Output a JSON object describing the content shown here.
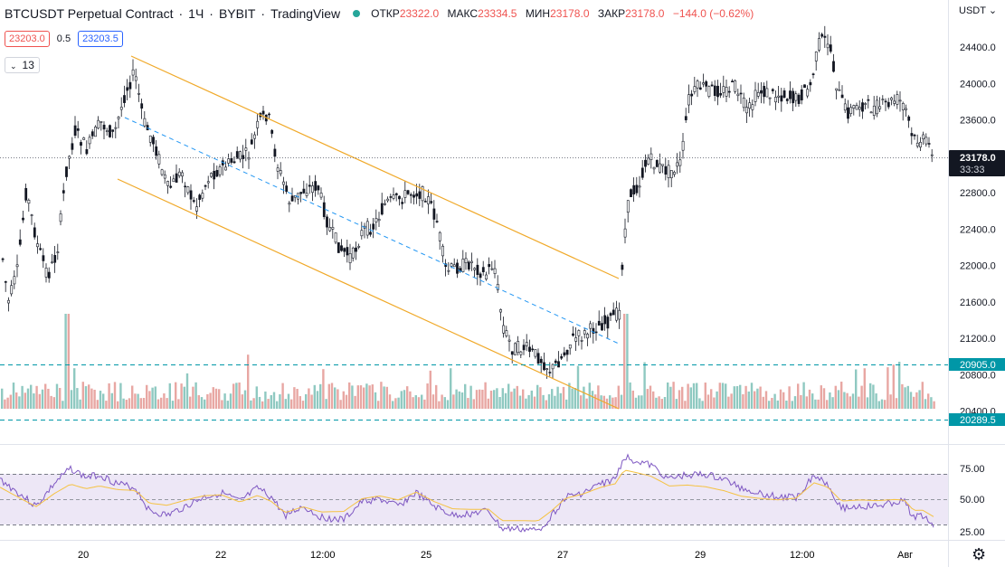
{
  "header": {
    "symbol": "BTCUSDT Perpetual Contract",
    "interval": "1Ч",
    "exchange": "BYBIT",
    "source": "TradingView",
    "open_label": "ОТКР",
    "open": "23322.0",
    "high_label": "МАКС",
    "high": "23334.5",
    "low_label": "МИН",
    "low": "23178.0",
    "close_label": "ЗАКР",
    "close": "23178.0",
    "change": "−144.0 (−0.62%)",
    "status_color": "#26a69a"
  },
  "order": {
    "sell": "23203.0",
    "spread": "0.5",
    "buy": "23203.5"
  },
  "indicators": {
    "count": "13"
  },
  "price_axis": {
    "currency": "USDT",
    "ticks": [
      "24400.0",
      "24000.0",
      "23600.0",
      "22800.0",
      "22400.0",
      "22000.0",
      "21600.0",
      "21200.0",
      "20800.0",
      "20400.0"
    ],
    "tick_values": [
      24400,
      24000,
      23600,
      22800,
      22400,
      22000,
      21600,
      21200,
      20800,
      20400
    ],
    "last_price": "23178.0",
    "countdown": "33:33",
    "alert_high": "20905.0",
    "alert_low": "20289.5"
  },
  "rsi_axis": {
    "ticks": [
      "75.00",
      "50.00",
      "25.00"
    ]
  },
  "time_axis": [
    "20",
    "22",
    "12:00",
    "25",
    "27",
    "29",
    "12:00",
    "Авг"
  ],
  "colors": {
    "up": "#26a69a",
    "down": "#ef5350",
    "candle": "#131722",
    "channel": "#f0a929",
    "mid": "#2196f3",
    "rsi": "#7e57c2",
    "rsi_ma": "#f5c242"
  }
}
